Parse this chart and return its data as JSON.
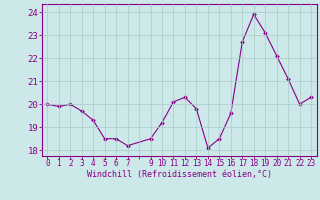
{
  "x": [
    0,
    1,
    2,
    3,
    4,
    5,
    6,
    7,
    9,
    10,
    11,
    12,
    13,
    14,
    15,
    16,
    17,
    18,
    19,
    20,
    21,
    22,
    23
  ],
  "y": [
    20.0,
    19.9,
    20.0,
    19.7,
    19.3,
    18.5,
    18.5,
    18.2,
    18.5,
    19.2,
    20.1,
    20.3,
    19.8,
    18.1,
    18.5,
    19.6,
    22.7,
    23.9,
    23.1,
    22.1,
    21.1,
    20.0,
    20.3
  ],
  "line_color": "#880088",
  "marker_color": "#880088",
  "bg_color": "#cce8e8",
  "grid_color": "#aacccc",
  "axis_color": "#880088",
  "tick_color": "#880088",
  "xlabel": "Windchill (Refroidissement éolien,°C)",
  "yticks": [
    18,
    19,
    20,
    21,
    22,
    23,
    24
  ],
  "xtick_labels": [
    "0",
    "1",
    "2",
    "3",
    "4",
    "5",
    "6",
    "7",
    "",
    "9",
    "10",
    "11",
    "12",
    "13",
    "14",
    "15",
    "16",
    "17",
    "18",
    "19",
    "20",
    "21",
    "22",
    "23"
  ],
  "xlim": [
    -0.5,
    23.5
  ],
  "ylim": [
    17.75,
    24.35
  ]
}
